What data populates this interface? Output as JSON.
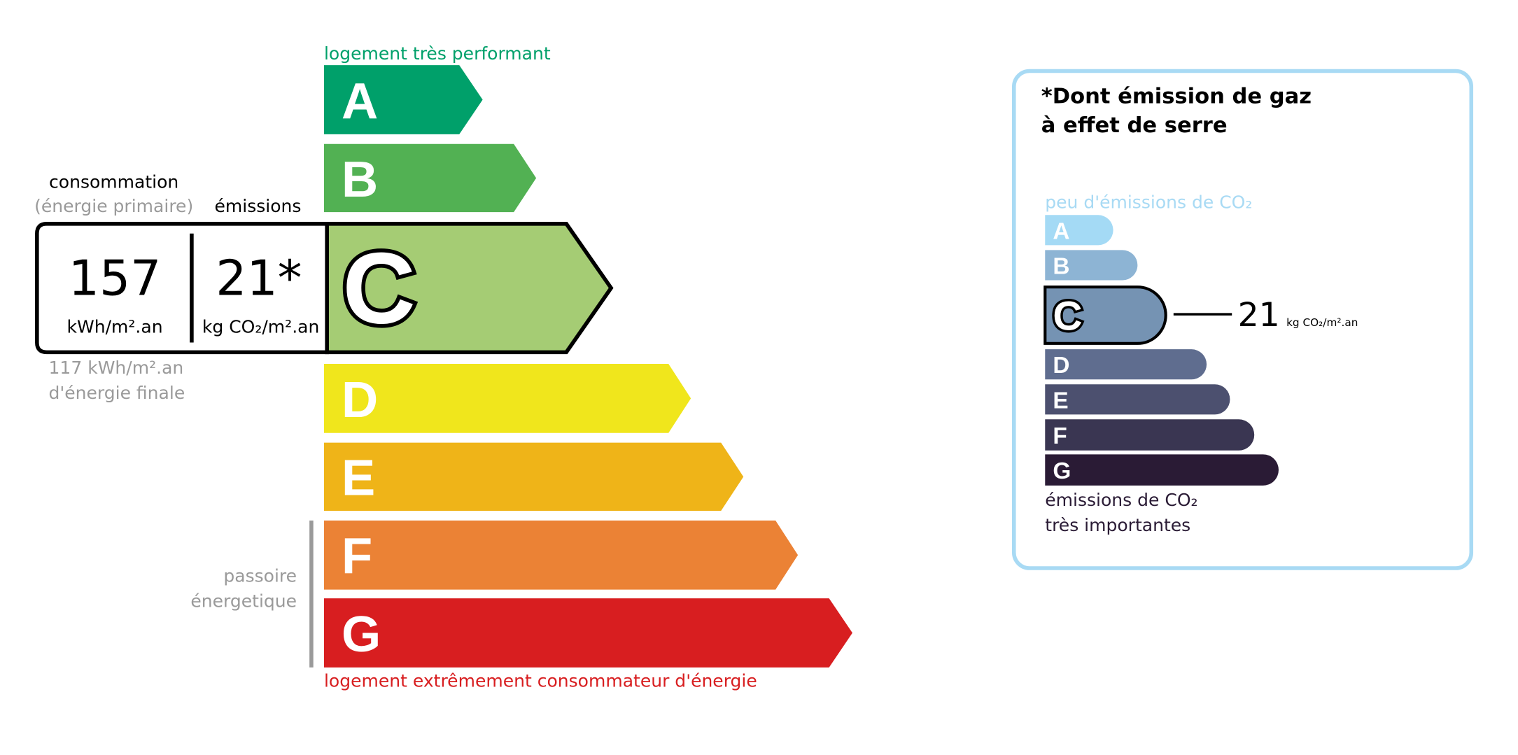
{
  "energy": {
    "top_label": "logement très performant",
    "bottom_label": "logement extrêmement consommateur d'énergie",
    "top_label_color": "#00a06a",
    "bottom_label_color": "#d81e20",
    "classes": [
      {
        "letter": "A",
        "color": "#00a06a"
      },
      {
        "letter": "B",
        "color": "#52b153"
      },
      {
        "letter": "C",
        "color": "#a5cc74"
      },
      {
        "letter": "D",
        "color": "#f0e61c"
      },
      {
        "letter": "E",
        "color": "#efb418"
      },
      {
        "letter": "F",
        "color": "#eb8235"
      },
      {
        "letter": "G",
        "color": "#d81e20"
      }
    ],
    "selected_class": "C",
    "consumption_header": "consommation",
    "consumption_subheader": "(énergie primaire)",
    "emissions_header": "émissions",
    "consumption_value": "157",
    "consumption_unit": "kWh/m².an",
    "emissions_value": "21*",
    "emissions_unit": "kg CO₂/m².an",
    "final_energy_value": "117 kWh/m².an",
    "final_energy_label": "d'énergie finale",
    "passoire_line1": "passoire",
    "passoire_line2": "énergetique"
  },
  "ges": {
    "title_line1": "*Dont émission de gaz",
    "title_line2": "à effet de serre",
    "top_label": "peu d'émissions de CO₂",
    "bottom_label_line1": "émissions de CO₂",
    "bottom_label_line2": "très importantes",
    "border_color": "#a8daf4",
    "classes": [
      {
        "letter": "A",
        "color": "#a4daf5"
      },
      {
        "letter": "B",
        "color": "#8db4d4"
      },
      {
        "letter": "C",
        "color": "#7593b3"
      },
      {
        "letter": "D",
        "color": "#5f6d8f"
      },
      {
        "letter": "E",
        "color": "#4c506f"
      },
      {
        "letter": "F",
        "color": "#3a3652"
      },
      {
        "letter": "G",
        "color": "#2a1b35"
      }
    ],
    "selected_class": "C",
    "value": "21",
    "unit": "kg CO₂/m².an"
  }
}
